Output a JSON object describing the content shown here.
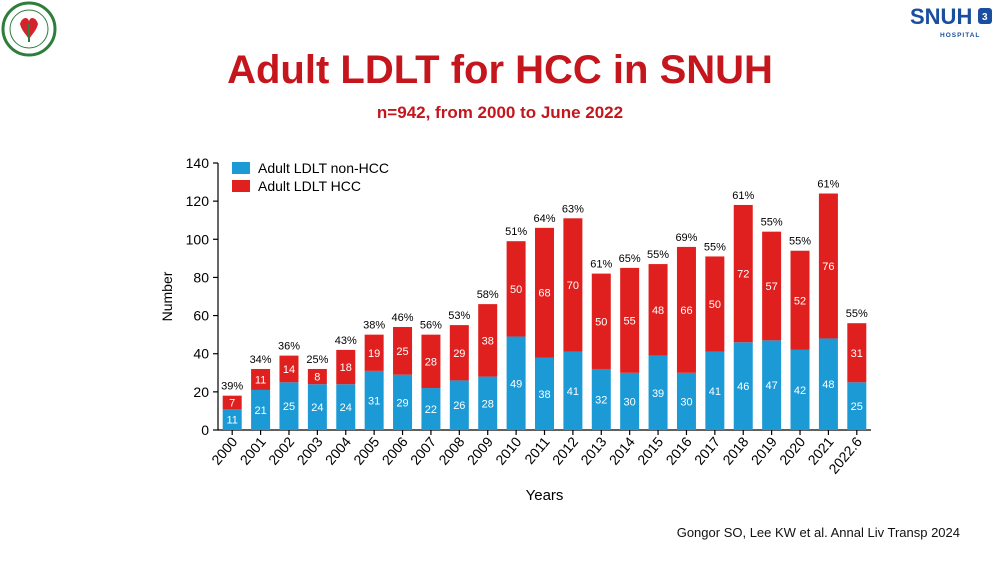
{
  "header": {
    "title": "Adult LDLT for HCC in SNUH",
    "subtitle": "n=942, from 2000 to June 2022"
  },
  "logos": {
    "left": "VSHBPS seal",
    "right_main": "SNUH",
    "right_sub": "HOSPITAL"
  },
  "citation": "Gongor SO, Lee KW et al. Annal Liv Transp 2024",
  "colors": {
    "title": "#c4161c",
    "non_hcc": "#1b9ad6",
    "hcc": "#e0201f",
    "seal_green": "#2e7d3b",
    "snuh_blue": "#1a4fa0"
  },
  "chart_data": {
    "type": "bar",
    "stacked": true,
    "xlabel": "Years",
    "ylabel": "Number",
    "ylim": [
      0,
      140
    ],
    "yticks": [
      0,
      20,
      40,
      60,
      80,
      100,
      120,
      140
    ],
    "legend_position": "top-left",
    "categories": [
      "2000",
      "2001",
      "2002",
      "2003",
      "2004",
      "2005",
      "2006",
      "2007",
      "2008",
      "2009",
      "2010",
      "2011",
      "2012",
      "2013",
      "2014",
      "2015",
      "2016",
      "2017",
      "2018",
      "2019",
      "2020",
      "2021",
      "2022.6"
    ],
    "series": [
      {
        "name": "Adult LDLT non-HCC",
        "color": "#1b9ad6",
        "values": [
          11,
          21,
          25,
          24,
          24,
          31,
          29,
          22,
          26,
          28,
          49,
          38,
          41,
          32,
          30,
          39,
          30,
          41,
          46,
          47,
          42,
          48,
          25
        ]
      },
      {
        "name": "Adult LDLT HCC",
        "color": "#e0201f",
        "values": [
          7,
          11,
          14,
          8,
          18,
          19,
          25,
          28,
          29,
          38,
          50,
          68,
          70,
          50,
          55,
          48,
          66,
          50,
          72,
          57,
          52,
          76,
          31
        ]
      }
    ],
    "percent_labels": [
      "39%",
      "34%",
      "36%",
      "25%",
      "43%",
      "38%",
      "46%",
      "56%",
      "53%",
      "58%",
      "51%",
      "64%",
      "63%",
      "61%",
      "65%",
      "55%",
      "69%",
      "55%",
      "61%",
      "55%",
      "55%",
      "61%",
      "55%"
    ]
  }
}
